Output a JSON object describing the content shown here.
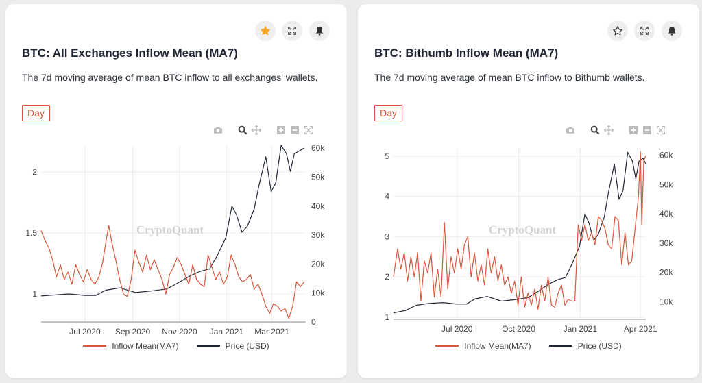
{
  "colors": {
    "inflow": "#d9563a",
    "price": "#1f2533",
    "accent": "#d9563a",
    "star_active": "#f5a623",
    "grid": "#ededed",
    "axis_text": "#444444"
  },
  "cards": [
    {
      "title": "BTC: All Exchanges Inflow Mean (MA7)",
      "description": "The 7d moving average of mean BTC inflow to all exchanges' wallets.",
      "timeframe": "Day",
      "starred": true,
      "icons": [
        "star-icon",
        "expand-icon",
        "bell-icon"
      ],
      "watermark": "CryptoQuant",
      "legend": {
        "inflow": "Inflow Mean(MA7)",
        "price": "Price (USD)"
      }
    },
    {
      "title": "BTC: Bithumb Inflow Mean (MA7)",
      "description": "The 7d moving average of mean BTC inflow to Bithumb wallets.",
      "timeframe": "Day",
      "starred": false,
      "icons": [
        "star-icon",
        "expand-icon",
        "bell-icon"
      ],
      "watermark": "CryptoQuant",
      "legend": {
        "inflow": "Inflow Mean(MA7)",
        "price": "Price (USD)"
      }
    }
  ],
  "modebar_icons": [
    "camera-icon",
    "zoom-icon",
    "pan-icon",
    "zoom-in-icon",
    "zoom-out-icon",
    "autoscale-icon"
  ],
  "chart_data": [
    {
      "type": "line",
      "x_ticks": [
        "Jul 2020",
        "Sep 2020",
        "Nov 2020",
        "Jan 2021",
        "Mar 2021"
      ],
      "x_tick_dates": [
        "2020-07-01",
        "2020-09-01",
        "2020-11-01",
        "2021-01-01",
        "2021-03-01"
      ],
      "xlim": [
        "2020-05-05",
        "2021-04-14"
      ],
      "y_left": {
        "ticks": [
          1,
          1.5,
          2
        ],
        "range": [
          0.77,
          2.22
        ],
        "ticktext": [
          "1",
          "1.5",
          "2"
        ]
      },
      "y_right": {
        "ticks": [
          0,
          10000,
          20000,
          30000,
          40000,
          50000,
          60000
        ],
        "ticktext": [
          "0",
          "10k",
          "20k",
          "30k",
          "40k",
          "50k",
          "60k"
        ],
        "range": [
          0,
          61000
        ]
      },
      "grid": true,
      "legend_position": "bottom",
      "series": [
        {
          "name": "Inflow Mean(MA7)",
          "axis": "left",
          "points": [
            [
              "2020-05-05",
              1.52
            ],
            [
              "2020-05-10",
              1.44
            ],
            [
              "2020-05-15",
              1.38
            ],
            [
              "2020-05-20",
              1.28
            ],
            [
              "2020-05-25",
              1.14
            ],
            [
              "2020-05-30",
              1.24
            ],
            [
              "2020-06-04",
              1.12
            ],
            [
              "2020-06-09",
              1.18
            ],
            [
              "2020-06-14",
              1.08
            ],
            [
              "2020-06-19",
              1.24
            ],
            [
              "2020-06-24",
              1.16
            ],
            [
              "2020-06-29",
              1.1
            ],
            [
              "2020-07-04",
              1.2
            ],
            [
              "2020-07-09",
              1.12
            ],
            [
              "2020-07-14",
              1.08
            ],
            [
              "2020-07-19",
              1.14
            ],
            [
              "2020-07-24",
              1.26
            ],
            [
              "2020-07-29",
              1.46
            ],
            [
              "2020-08-01",
              1.56
            ],
            [
              "2020-08-05",
              1.42
            ],
            [
              "2020-08-10",
              1.28
            ],
            [
              "2020-08-15",
              1.12
            ],
            [
              "2020-08-20",
              1.0
            ],
            [
              "2020-08-25",
              0.98
            ],
            [
              "2020-08-30",
              1.12
            ],
            [
              "2020-09-04",
              1.36
            ],
            [
              "2020-09-09",
              1.26
            ],
            [
              "2020-09-14",
              1.18
            ],
            [
              "2020-09-19",
              1.32
            ],
            [
              "2020-09-24",
              1.2
            ],
            [
              "2020-09-29",
              1.28
            ],
            [
              "2020-10-04",
              1.2
            ],
            [
              "2020-10-09",
              1.12
            ],
            [
              "2020-10-14",
              1.0
            ],
            [
              "2020-10-19",
              1.16
            ],
            [
              "2020-10-24",
              1.22
            ],
            [
              "2020-10-29",
              1.3
            ],
            [
              "2020-11-03",
              1.24
            ],
            [
              "2020-11-08",
              1.16
            ],
            [
              "2020-11-13",
              1.08
            ],
            [
              "2020-11-18",
              1.24
            ],
            [
              "2020-11-23",
              1.12
            ],
            [
              "2020-11-28",
              1.08
            ],
            [
              "2020-12-03",
              1.06
            ],
            [
              "2020-12-08",
              1.32
            ],
            [
              "2020-12-13",
              1.22
            ],
            [
              "2020-12-18",
              1.12
            ],
            [
              "2020-12-23",
              1.18
            ],
            [
              "2020-12-28",
              1.08
            ],
            [
              "2021-01-02",
              1.14
            ],
            [
              "2021-01-07",
              1.32
            ],
            [
              "2021-01-12",
              1.24
            ],
            [
              "2021-01-17",
              1.14
            ],
            [
              "2021-01-22",
              1.1
            ],
            [
              "2021-01-27",
              1.12
            ],
            [
              "2021-02-01",
              1.16
            ],
            [
              "2021-02-06",
              1.04
            ],
            [
              "2021-02-11",
              1.08
            ],
            [
              "2021-02-16",
              1.0
            ],
            [
              "2021-02-21",
              0.9
            ],
            [
              "2021-02-26",
              0.84
            ],
            [
              "2021-03-03",
              0.92
            ],
            [
              "2021-03-08",
              0.9
            ],
            [
              "2021-03-13",
              0.86
            ],
            [
              "2021-03-18",
              0.88
            ],
            [
              "2021-03-23",
              0.8
            ],
            [
              "2021-03-28",
              0.9
            ],
            [
              "2021-04-02",
              1.1
            ],
            [
              "2021-04-07",
              1.06
            ],
            [
              "2021-04-12",
              1.1
            ]
          ]
        },
        {
          "name": "Price (USD)",
          "axis": "right",
          "points": [
            [
              "2020-05-05",
              9000
            ],
            [
              "2020-05-20",
              9300
            ],
            [
              "2020-06-10",
              9700
            ],
            [
              "2020-07-01",
              9200
            ],
            [
              "2020-07-15",
              9200
            ],
            [
              "2020-07-28",
              11000
            ],
            [
              "2020-08-15",
              11800
            ],
            [
              "2020-09-05",
              10200
            ],
            [
              "2020-09-25",
              10700
            ],
            [
              "2020-10-15",
              11400
            ],
            [
              "2020-10-30",
              13500
            ],
            [
              "2020-11-15",
              16000
            ],
            [
              "2020-11-28",
              17500
            ],
            [
              "2020-12-10",
              18300
            ],
            [
              "2020-12-20",
              23000
            ],
            [
              "2020-12-31",
              29000
            ],
            [
              "2021-01-08",
              40000
            ],
            [
              "2021-01-14",
              37000
            ],
            [
              "2021-01-21",
              31000
            ],
            [
              "2021-01-28",
              33000
            ],
            [
              "2021-02-06",
              39000
            ],
            [
              "2021-02-12",
              47000
            ],
            [
              "2021-02-21",
              57000
            ],
            [
              "2021-02-28",
              45000
            ],
            [
              "2021-03-06",
              48000
            ],
            [
              "2021-03-13",
              61000
            ],
            [
              "2021-03-20",
              58000
            ],
            [
              "2021-03-25",
              52000
            ],
            [
              "2021-03-30",
              58000
            ],
            [
              "2021-04-05",
              59000
            ],
            [
              "2021-04-12",
              60000
            ]
          ]
        }
      ]
    },
    {
      "type": "line",
      "x_ticks": [
        "Jul 2020",
        "Oct 2020",
        "Jan 2021",
        "Apr 2021"
      ],
      "x_tick_dates": [
        "2020-07-01",
        "2020-10-01",
        "2021-01-01",
        "2021-04-01"
      ],
      "xlim": [
        "2020-03-28",
        "2021-04-09"
      ],
      "y_left": {
        "ticks": [
          1,
          2,
          3,
          4,
          5
        ],
        "range": [
          0.95,
          5.2
        ],
        "ticktext": [
          "1",
          "2",
          "3",
          "4",
          "5"
        ]
      },
      "y_right": {
        "ticks": [
          10000,
          20000,
          30000,
          40000,
          50000,
          60000
        ],
        "ticktext": [
          "10k",
          "20k",
          "30k",
          "40k",
          "50k",
          "60k"
        ],
        "range": [
          4000,
          62500
        ]
      },
      "grid": true,
      "legend_position": "bottom",
      "series": [
        {
          "name": "Inflow Mean(MA7)",
          "axis": "left",
          "points": [
            [
              "2020-03-28",
              2.0
            ],
            [
              "2020-04-03",
              2.7
            ],
            [
              "2020-04-08",
              2.2
            ],
            [
              "2020-04-13",
              2.6
            ],
            [
              "2020-04-18",
              1.9
            ],
            [
              "2020-04-23",
              2.5
            ],
            [
              "2020-04-28",
              2.0
            ],
            [
              "2020-05-03",
              2.6
            ],
            [
              "2020-05-08",
              1.4
            ],
            [
              "2020-05-13",
              2.4
            ],
            [
              "2020-05-18",
              2.1
            ],
            [
              "2020-05-23",
              2.6
            ],
            [
              "2020-05-28",
              1.5
            ],
            [
              "2020-06-02",
              2.2
            ],
            [
              "2020-06-07",
              1.5
            ],
            [
              "2020-06-12",
              3.35
            ],
            [
              "2020-06-17",
              1.7
            ],
            [
              "2020-06-22",
              2.5
            ],
            [
              "2020-06-27",
              2.1
            ],
            [
              "2020-07-02",
              2.7
            ],
            [
              "2020-07-07",
              2.2
            ],
            [
              "2020-07-12",
              2.8
            ],
            [
              "2020-07-17",
              3.0
            ],
            [
              "2020-07-22",
              2.0
            ],
            [
              "2020-07-27",
              2.6
            ],
            [
              "2020-08-01",
              1.9
            ],
            [
              "2020-08-06",
              2.3
            ],
            [
              "2020-08-11",
              1.8
            ],
            [
              "2020-08-16",
              2.7
            ],
            [
              "2020-08-21",
              2.1
            ],
            [
              "2020-08-26",
              2.5
            ],
            [
              "2020-08-31",
              1.9
            ],
            [
              "2020-09-05",
              2.3
            ],
            [
              "2020-09-10",
              1.8
            ],
            [
              "2020-09-15",
              2.0
            ],
            [
              "2020-09-20",
              1.6
            ],
            [
              "2020-09-25",
              1.9
            ],
            [
              "2020-09-30",
              1.3
            ],
            [
              "2020-10-05",
              2.0
            ],
            [
              "2020-10-10",
              1.25
            ],
            [
              "2020-10-15",
              1.6
            ],
            [
              "2020-10-20",
              1.3
            ],
            [
              "2020-10-25",
              1.7
            ],
            [
              "2020-10-30",
              1.2
            ],
            [
              "2020-11-04",
              1.8
            ],
            [
              "2020-11-09",
              1.4
            ],
            [
              "2020-11-14",
              2.0
            ],
            [
              "2020-11-19",
              1.3
            ],
            [
              "2020-11-24",
              1.25
            ],
            [
              "2020-11-29",
              1.6
            ],
            [
              "2020-12-04",
              1.8
            ],
            [
              "2020-12-09",
              1.3
            ],
            [
              "2020-12-14",
              1.45
            ],
            [
              "2020-12-19",
              1.4
            ],
            [
              "2020-12-24",
              1.4
            ],
            [
              "2020-12-29",
              3.3
            ],
            [
              "2021-01-03",
              2.9
            ],
            [
              "2021-01-08",
              3.3
            ],
            [
              "2021-01-13",
              2.9
            ],
            [
              "2021-01-18",
              3.1
            ],
            [
              "2021-01-23",
              2.8
            ],
            [
              "2021-01-28",
              3.5
            ],
            [
              "2021-02-02",
              3.4
            ],
            [
              "2021-02-07",
              3.2
            ],
            [
              "2021-02-12",
              2.8
            ],
            [
              "2021-02-17",
              2.7
            ],
            [
              "2021-02-22",
              3.5
            ],
            [
              "2021-02-27",
              3.4
            ],
            [
              "2021-03-04",
              2.3
            ],
            [
              "2021-03-09",
              3.1
            ],
            [
              "2021-03-14",
              2.3
            ],
            [
              "2021-03-19",
              2.4
            ],
            [
              "2021-03-24",
              3.2
            ],
            [
              "2021-03-29",
              4.0
            ],
            [
              "2021-04-01",
              5.1
            ],
            [
              "2021-04-03",
              3.3
            ],
            [
              "2021-04-06",
              4.9
            ],
            [
              "2021-04-09",
              5.0
            ]
          ]
        },
        {
          "name": "Price (USD)",
          "axis": "right",
          "points": [
            [
              "2020-03-28",
              6200
            ],
            [
              "2020-04-15",
              7000
            ],
            [
              "2020-05-01",
              8800
            ],
            [
              "2020-05-20",
              9400
            ],
            [
              "2020-06-10",
              9700
            ],
            [
              "2020-07-01",
              9200
            ],
            [
              "2020-07-15",
              9200
            ],
            [
              "2020-07-28",
              11000
            ],
            [
              "2020-08-15",
              11800
            ],
            [
              "2020-09-05",
              10200
            ],
            [
              "2020-09-25",
              10700
            ],
            [
              "2020-10-15",
              11400
            ],
            [
              "2020-10-30",
              13500
            ],
            [
              "2020-11-15",
              16000
            ],
            [
              "2020-11-28",
              17500
            ],
            [
              "2020-12-10",
              18300
            ],
            [
              "2020-12-20",
              23000
            ],
            [
              "2020-12-31",
              29000
            ],
            [
              "2021-01-08",
              40000
            ],
            [
              "2021-01-14",
              37000
            ],
            [
              "2021-01-21",
              31000
            ],
            [
              "2021-01-28",
              33000
            ],
            [
              "2021-02-06",
              39000
            ],
            [
              "2021-02-12",
              47000
            ],
            [
              "2021-02-21",
              57000
            ],
            [
              "2021-02-28",
              45000
            ],
            [
              "2021-03-06",
              48000
            ],
            [
              "2021-03-13",
              61000
            ],
            [
              "2021-03-20",
              58000
            ],
            [
              "2021-03-25",
              52000
            ],
            [
              "2021-03-30",
              58000
            ],
            [
              "2021-04-05",
              59000
            ],
            [
              "2021-04-09",
              57000
            ]
          ]
        }
      ]
    }
  ]
}
